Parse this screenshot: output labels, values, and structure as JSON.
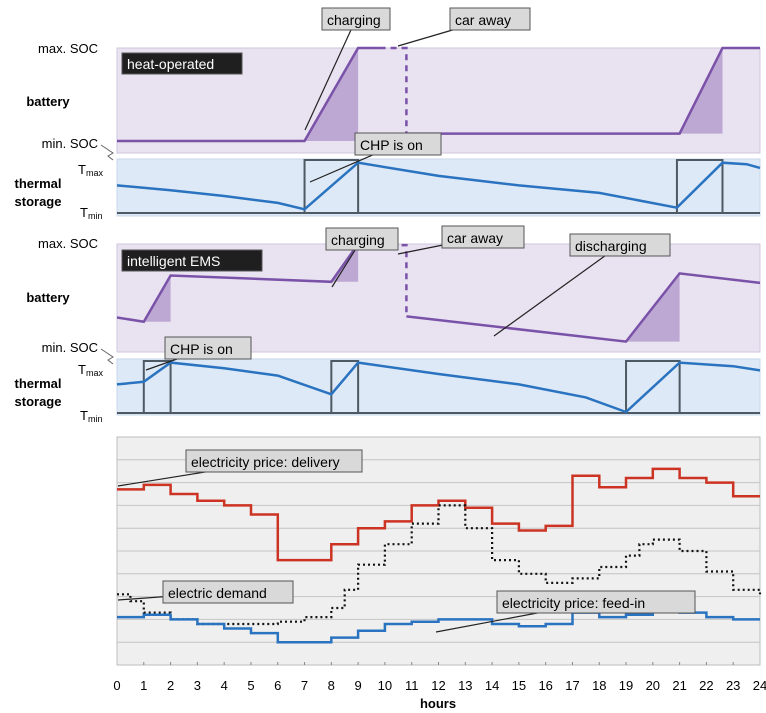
{
  "chart_data": {
    "type": "line",
    "xlabel": "hours",
    "x_ticks": [
      0,
      1,
      2,
      3,
      4,
      5,
      6,
      7,
      8,
      9,
      10,
      11,
      12,
      13,
      14,
      15,
      16,
      17,
      18,
      19,
      20,
      21,
      22,
      23,
      24
    ],
    "xlim": [
      0,
      24
    ],
    "axis_labels": {
      "max_soc": "max. SOC",
      "min_soc": "min. SOC",
      "battery": "battery",
      "thermal": "thermal",
      "storage": "storage",
      "t_max_main": "T",
      "t_max_sub": "max",
      "t_min_main": "T",
      "t_min_sub": "min"
    },
    "panels": [
      {
        "name": "heat-operated",
        "title": "heat-operated",
        "battery_soc": {
          "ylim": [
            0,
            1
          ],
          "x": [
            0,
            7.0,
            9.0,
            9.8,
            10.8,
            10.8,
            21.0,
            22.6,
            24
          ],
          "y": [
            0,
            0,
            1,
            1,
            1,
            0.08,
            0.08,
            1,
            1
          ],
          "car_away": [
            9.8,
            10.8
          ]
        },
        "charging_areas": [
          {
            "x": [
              7.0,
              9.0,
              9.0
            ],
            "y": [
              0,
              1,
              0
            ]
          },
          {
            "x": [
              21.0,
              22.6,
              22.6
            ],
            "y": [
              0.08,
              1,
              0.08
            ]
          }
        ],
        "thermal_temp": {
          "ylim": [
            0,
            1
          ],
          "x": [
            0,
            2,
            4,
            6,
            7.0,
            9.0,
            12,
            15,
            18,
            20.9,
            22.6,
            23.5,
            24
          ],
          "y": [
            0.52,
            0.43,
            0.32,
            0.19,
            0.07,
            0.95,
            0.7,
            0.52,
            0.38,
            0.1,
            0.95,
            0.92,
            0.85
          ]
        },
        "chp_on": [
          [
            7.0,
            9.0
          ],
          [
            20.9,
            22.6
          ]
        ],
        "callouts": [
          "charging",
          "car away",
          "CHP is on"
        ]
      },
      {
        "name": "intelligent EMS",
        "title": "intelligent  EMS",
        "battery_soc": {
          "ylim": [
            0,
            1
          ],
          "x": [
            0,
            1.0,
            2.0,
            8.0,
            9.0,
            9.8,
            10.8,
            10.8,
            19.0,
            21.0,
            24
          ],
          "y": [
            0.3,
            0.26,
            0.7,
            0.64,
            1.0,
            0.99,
            0.99,
            0.31,
            0.07,
            0.72,
            0.63
          ],
          "car_away": [
            9.8,
            10.8
          ]
        },
        "charging_areas": [
          {
            "x": [
              1.0,
              2.0,
              2.0
            ],
            "y": [
              0.26,
              0.7,
              0.26
            ]
          },
          {
            "x": [
              8.0,
              9.0,
              9.0
            ],
            "y": [
              0.64,
              1.0,
              0.64
            ]
          },
          {
            "x": [
              19.0,
              21.0,
              21.0
            ],
            "y": [
              0.07,
              0.72,
              0.07
            ]
          }
        ],
        "thermal_temp": {
          "ylim": [
            0,
            1
          ],
          "x": [
            0,
            1.0,
            2.0,
            4,
            6,
            8.0,
            9.0,
            12,
            15,
            17.5,
            19.0,
            21.0,
            23,
            24
          ],
          "y": [
            0.55,
            0.6,
            0.97,
            0.86,
            0.72,
            0.36,
            0.97,
            0.75,
            0.55,
            0.3,
            0.02,
            0.97,
            0.9,
            0.82
          ]
        },
        "chp_on": [
          [
            1.0,
            2.0
          ],
          [
            8.0,
            9.0
          ],
          [
            19.0,
            21.0
          ]
        ],
        "callouts": [
          "charging",
          "car away",
          "discharging",
          "CHP is on"
        ]
      }
    ],
    "bottom_panel": {
      "series": [
        {
          "name": "electricity price: delivery",
          "color": "#cc3322",
          "style": "step",
          "ylim": [
            0,
            10
          ],
          "x": [
            0,
            1,
            2,
            3,
            4,
            5,
            6,
            8,
            9,
            10,
            11,
            12,
            13,
            14,
            15,
            16,
            17,
            18,
            19,
            20,
            21,
            22,
            23,
            24
          ],
          "y": [
            7.7,
            7.9,
            7.5,
            7.2,
            7.0,
            6.6,
            4.6,
            5.3,
            6.0,
            6.3,
            7.0,
            7.2,
            6.9,
            6.2,
            5.9,
            6.1,
            8.3,
            7.8,
            8.2,
            8.6,
            8.2,
            8.0,
            7.4,
            7.4
          ]
        },
        {
          "name": "electric demand",
          "color": "#111111",
          "style": "dotted-step",
          "ylim": [
            0,
            10
          ],
          "x": [
            0,
            0.5,
            1,
            2,
            3,
            4,
            5,
            6,
            7,
            8,
            8.5,
            9,
            10,
            11,
            12,
            13,
            14,
            15,
            16,
            17,
            18,
            19,
            19.5,
            20,
            21,
            22,
            23,
            24
          ],
          "y": [
            3.1,
            2.8,
            2.3,
            2.0,
            1.8,
            1.8,
            1.8,
            1.9,
            2.1,
            2.5,
            3.3,
            4.4,
            5.3,
            6.2,
            7.0,
            6.0,
            4.6,
            4.0,
            3.6,
            3.8,
            4.3,
            4.8,
            5.3,
            5.5,
            5.0,
            4.1,
            3.3,
            3.1
          ]
        },
        {
          "name": "electricity price: feed-in",
          "color": "#2a73c0",
          "style": "step",
          "ylim": [
            0,
            10
          ],
          "x": [
            0,
            1,
            2,
            3,
            4,
            5,
            6,
            8,
            9,
            10,
            11,
            12,
            13,
            14,
            15,
            16,
            17,
            18,
            19,
            20,
            21,
            22,
            23,
            24
          ],
          "y": [
            2.1,
            2.2,
            2.0,
            1.8,
            1.6,
            1.4,
            1.0,
            1.2,
            1.5,
            1.8,
            1.9,
            2.0,
            2.0,
            1.8,
            1.7,
            1.8,
            2.3,
            2.1,
            2.2,
            2.4,
            2.3,
            2.1,
            2.0,
            2.0
          ]
        }
      ],
      "grid": true
    }
  }
}
